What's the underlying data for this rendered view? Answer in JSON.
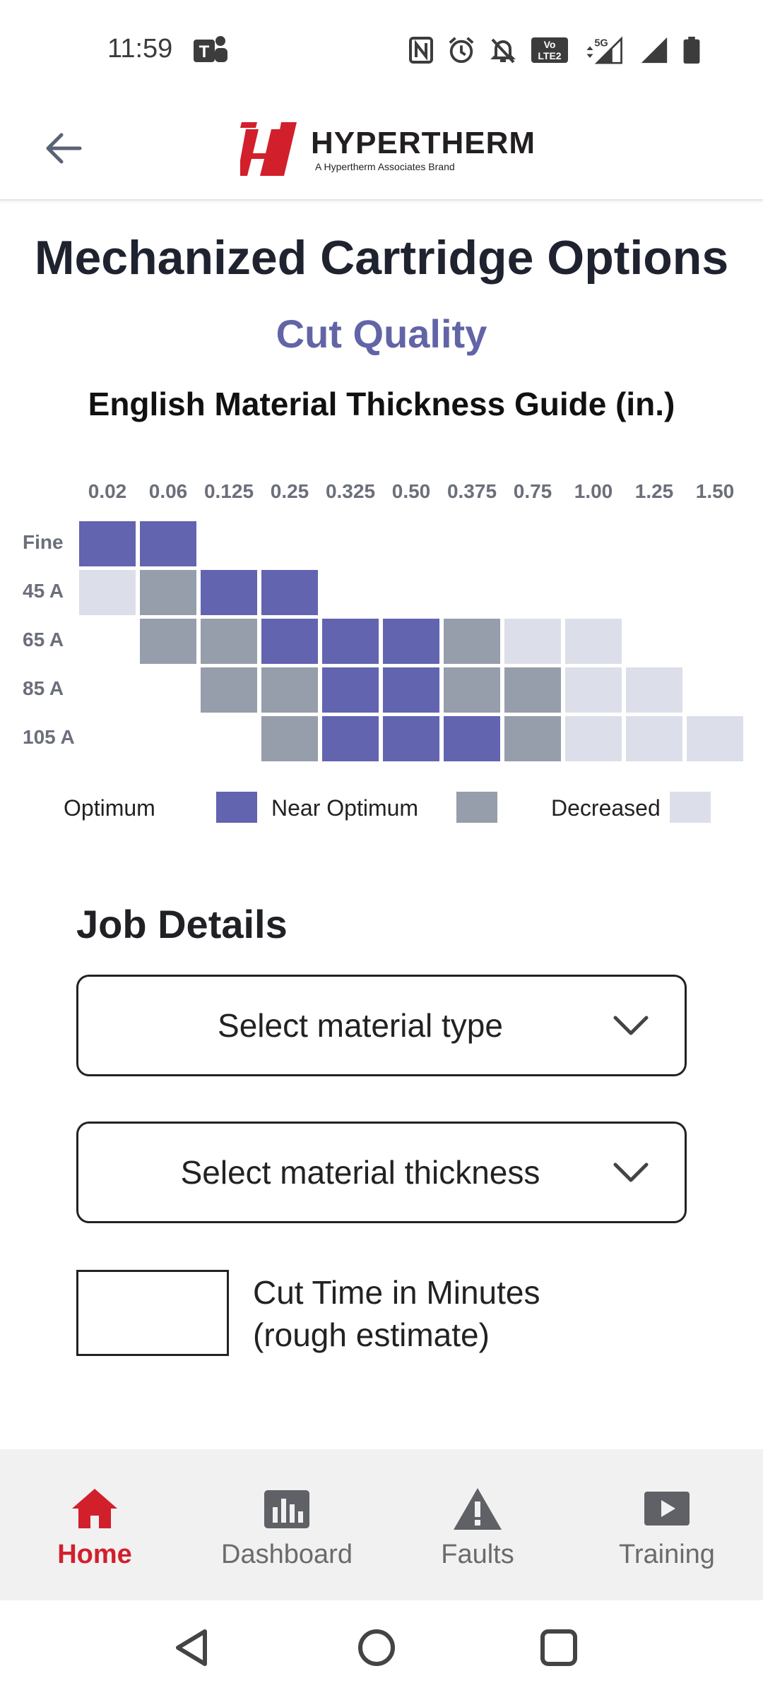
{
  "status_bar": {
    "time": "11:59",
    "icons": [
      "teams-icon",
      "nfc-icon",
      "alarm-icon",
      "mute-icon",
      "volte-icon",
      "5g-signal-icon",
      "signal-icon",
      "battery-icon"
    ]
  },
  "header": {
    "brand_name": "HYPERTHERM",
    "brand_tagline": "A Hypertherm Associates Brand",
    "brand_color": "#d21f2c"
  },
  "page": {
    "title": "Mechanized Cartridge Options",
    "subtitle": "Cut Quality",
    "guide_title": "English Material Thickness Guide (in.)"
  },
  "chart_data": {
    "type": "heatmap",
    "x": [
      "0.02",
      "0.06",
      "0.125",
      "0.25",
      "0.325",
      "0.50",
      "0.375",
      "0.75",
      "1.00",
      "1.25",
      "1.50"
    ],
    "y": [
      "Fine",
      "45 A",
      "65 A",
      "85 A",
      "105 A"
    ],
    "levels": {
      "O": {
        "name": "Optimum",
        "color": "#6264b0"
      },
      "N": {
        "name": "Near Optimum",
        "color": "#969eab"
      },
      "D": {
        "name": "Decreased",
        "color": "#dcdfe9"
      }
    },
    "rows": [
      [
        "O",
        "O",
        "",
        "",
        "",
        "",
        "",
        "",
        "",
        "",
        ""
      ],
      [
        "D",
        "N",
        "O",
        "O",
        "",
        "",
        "",
        "",
        "",
        "",
        ""
      ],
      [
        "",
        "N",
        "N",
        "O",
        "O",
        "O",
        "N",
        "D",
        "D",
        "",
        ""
      ],
      [
        "",
        "",
        "N",
        "N",
        "O",
        "O",
        "N",
        "N",
        "D",
        "D",
        ""
      ],
      [
        "",
        "",
        "",
        "N",
        "O",
        "O",
        "O",
        "N",
        "D",
        "D",
        "D"
      ]
    ],
    "legend": [
      {
        "label": "Optimum",
        "color": "#6264b0"
      },
      {
        "label": "Near Optimum",
        "color": "#969eab"
      },
      {
        "label": "Decreased",
        "color": "#dcdfe9"
      }
    ]
  },
  "job_details": {
    "title": "Job Details",
    "material_type_placeholder": "Select material type",
    "material_thickness_placeholder": "Select material thickness",
    "cut_time_label_line1": "Cut Time in Minutes",
    "cut_time_label_line2": "(rough estimate)",
    "cut_time_value": ""
  },
  "bottom_nav": {
    "items": [
      {
        "label": "Home",
        "icon": "home-icon",
        "active": true
      },
      {
        "label": "Dashboard",
        "icon": "dashboard-icon",
        "active": false
      },
      {
        "label": "Faults",
        "icon": "warning-icon",
        "active": false
      },
      {
        "label": "Training",
        "icon": "play-icon",
        "active": false
      }
    ]
  }
}
